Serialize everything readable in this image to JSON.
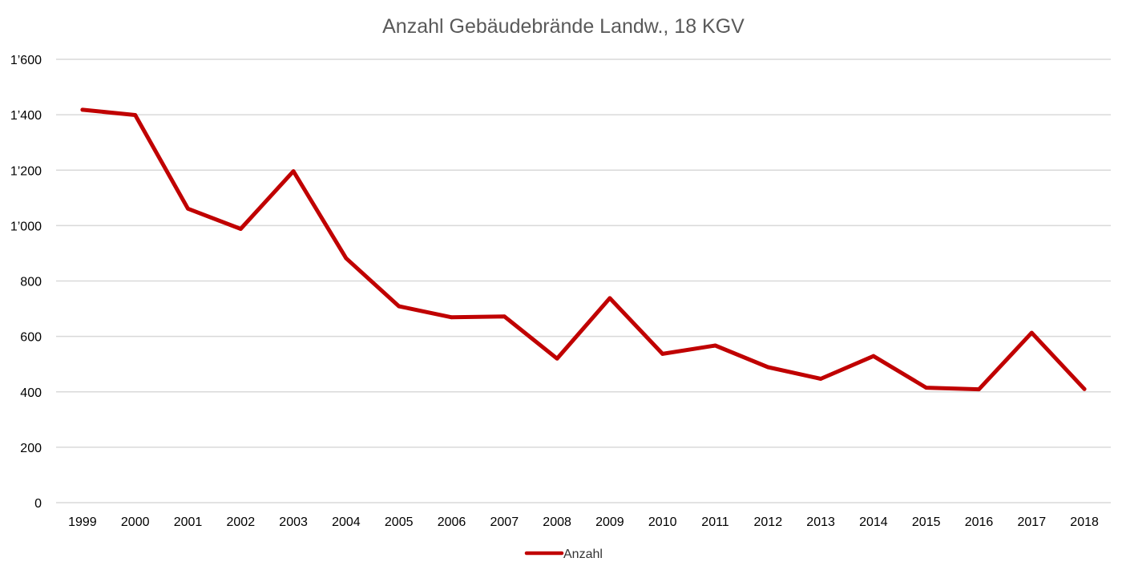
{
  "chart_data": {
    "type": "line",
    "title": "Anzahl Gebäudebrände Landw., 18 KGV",
    "xlabel": "",
    "ylabel": "",
    "ylim": [
      0,
      1600
    ],
    "yticks": [
      0,
      200,
      400,
      600,
      800,
      1000,
      1200,
      1400,
      1600
    ],
    "ytick_labels": [
      "0",
      "200",
      "400",
      "600",
      "800",
      "1’000",
      "1’200",
      "1’400",
      "1’600"
    ],
    "grid": true,
    "legend_position": "bottom",
    "categories": [
      "1999",
      "2000",
      "2001",
      "2002",
      "2003",
      "2004",
      "2005",
      "2006",
      "2007",
      "2008",
      "2009",
      "2010",
      "2011",
      "2012",
      "2013",
      "2014",
      "2015",
      "2016",
      "2017",
      "2018"
    ],
    "series": [
      {
        "name": "Anzahl",
        "color": "#c00000",
        "values": [
          1418,
          1399,
          1061,
          988,
          1196,
          882,
          709,
          669,
          672,
          520,
          738,
          537,
          567,
          489,
          447,
          529,
          415,
          409,
          613,
          410
        ]
      }
    ]
  }
}
